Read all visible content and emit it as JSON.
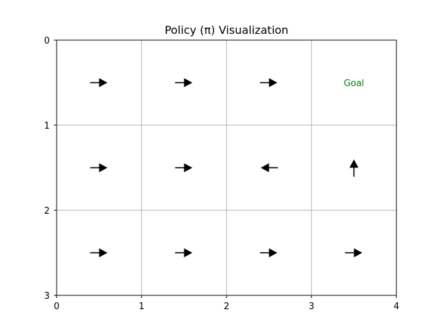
{
  "chart_data": {
    "type": "grid-policy",
    "title": "Policy (π) Visualization",
    "xlabel": "",
    "ylabel": "",
    "xlim": [
      0,
      4
    ],
    "ylim": [
      3,
      0
    ],
    "y_inverted": true,
    "grid": true,
    "rows": 3,
    "cols": 4,
    "x_ticks": [
      "0",
      "1",
      "2",
      "3",
      "4"
    ],
    "y_ticks": [
      "0",
      "1",
      "2",
      "3"
    ],
    "cells": [
      {
        "row": 0,
        "col": 0,
        "action": "right"
      },
      {
        "row": 0,
        "col": 1,
        "action": "right"
      },
      {
        "row": 0,
        "col": 2,
        "action": "right"
      },
      {
        "row": 0,
        "col": 3,
        "action": "goal",
        "label": "Goal"
      },
      {
        "row": 1,
        "col": 0,
        "action": "right"
      },
      {
        "row": 1,
        "col": 1,
        "action": "right"
      },
      {
        "row": 1,
        "col": 2,
        "action": "left"
      },
      {
        "row": 1,
        "col": 3,
        "action": "up"
      },
      {
        "row": 2,
        "col": 0,
        "action": "right"
      },
      {
        "row": 2,
        "col": 1,
        "action": "right"
      },
      {
        "row": 2,
        "col": 2,
        "action": "right"
      },
      {
        "row": 2,
        "col": 3,
        "action": "right"
      }
    ],
    "colors": {
      "arrow": "#000000",
      "goal_label": "#008000",
      "grid": "#b0b0b0",
      "axes": "#000000"
    }
  }
}
